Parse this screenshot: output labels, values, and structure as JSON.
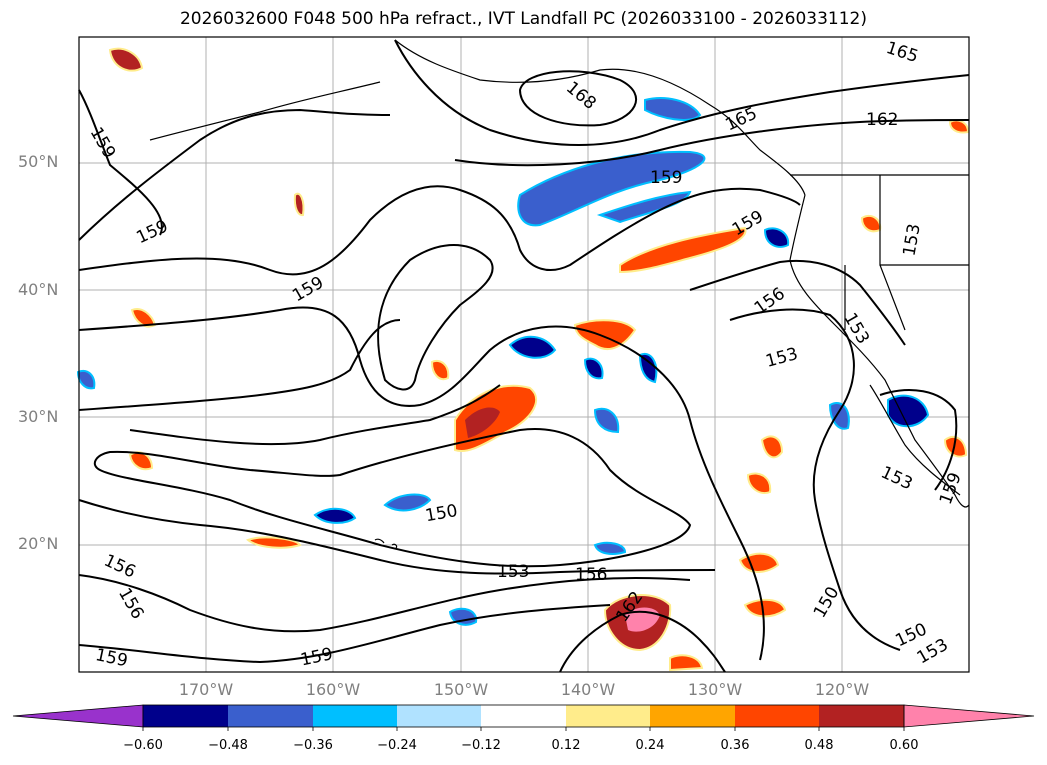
{
  "title": "2026032600 F048 500 hPa refract., IVT Landfall PC (2026033100 - 2026033112)",
  "lat_labels": [
    "50°N",
    "40°N",
    "30°N",
    "20°N"
  ],
  "lon_labels": [
    "170°W",
    "160°W",
    "150°W",
    "140°W",
    "130°W",
    "120°W"
  ],
  "contour_labels": [
    "168",
    "165",
    "165",
    "162",
    "159",
    "159",
    "159",
    "159",
    "159",
    "159",
    "156",
    "156",
    "156",
    "156",
    "153",
    "153",
    "153",
    "153",
    "153",
    "153",
    "150",
    "150",
    "150",
    "162",
    "159",
    "159"
  ],
  "colorbar": {
    "ticks": [
      "−0.60",
      "−0.48",
      "−0.36",
      "−0.24",
      "−0.12",
      "0.12",
      "0.24",
      "0.36",
      "0.48",
      "0.60"
    ],
    "colors": [
      "#9932cc",
      "#00008b",
      "#3a5fcd",
      "#00bfff",
      "#b0e2ff",
      "#ffffff",
      "#ffec8b",
      "#ffa500",
      "#ff4500",
      "#b22222",
      "#ff82ab"
    ]
  },
  "colors": {
    "contour": "#000000",
    "gridline": "#b0b0b0",
    "coastline": "#000000"
  }
}
